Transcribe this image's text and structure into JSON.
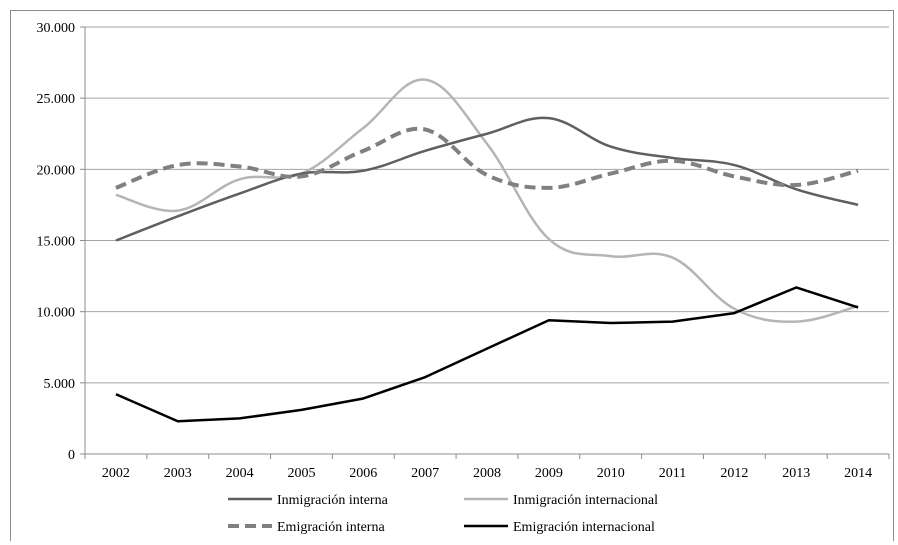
{
  "chart_data": {
    "type": "line",
    "title": "",
    "xlabel": "",
    "ylabel": "",
    "ylim": [
      0,
      30000
    ],
    "y_ticks": [
      0,
      5000,
      10000,
      15000,
      20000,
      25000,
      30000
    ],
    "y_tick_labels": [
      "0",
      "5.000",
      "10.000",
      "15.000",
      "20.000",
      "25.000",
      "30.000"
    ],
    "grid": "horizontal",
    "legend_position": "bottom",
    "categories": [
      "2002",
      "2003",
      "2004",
      "2005",
      "2006",
      "2007",
      "2008",
      "2009",
      "2010",
      "2011",
      "2012",
      "2013",
      "2014"
    ],
    "series": [
      {
        "name": "Inmigración interna",
        "color": "#5f5f5f",
        "dash": "solid",
        "values": [
          15000,
          16700,
          18300,
          19700,
          19900,
          21300,
          22500,
          23600,
          21600,
          20800,
          20300,
          18600,
          17500
        ]
      },
      {
        "name": "Inmigración internacional",
        "color": "#b5b5b5",
        "dash": "solid",
        "values": [
          18200,
          17100,
          19300,
          19700,
          22900,
          26300,
          21800,
          15100,
          13900,
          13800,
          10200,
          9300,
          10400
        ]
      },
      {
        "name": "Emigración interna",
        "color": "#808080",
        "dash": "dashed",
        "values": [
          18700,
          20300,
          20200,
          19500,
          21300,
          22800,
          19600,
          18700,
          19700,
          20600,
          19500,
          18900,
          19900
        ]
      },
      {
        "name": "Emigración internacional",
        "color": "#000000",
        "dash": "solid",
        "values": [
          4200,
          2300,
          2500,
          3100,
          3900,
          5400,
          7400,
          9400,
          9200,
          9300,
          9900,
          11700,
          10300
        ]
      }
    ]
  }
}
